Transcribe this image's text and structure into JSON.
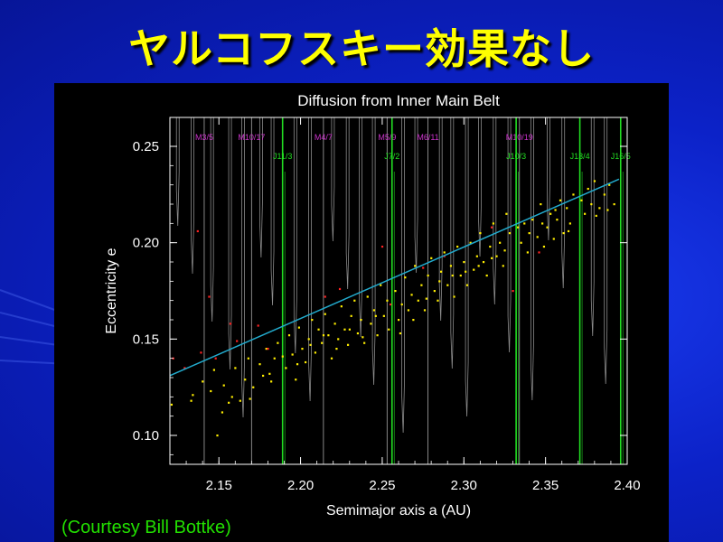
{
  "slide": {
    "title": "ヤルコフスキー効果なし",
    "credit": "(Courtesy Bill Bottke)"
  },
  "colors": {
    "background": "#0c22c8",
    "title": "#ffff00",
    "credit": "#22e000",
    "plot_bg": "#000000",
    "axes": "#ffffff",
    "mean_motion_mars": "#cc33cc",
    "mean_motion_jupiter": "#22dd22",
    "trend_line": "#22aacc",
    "points_main": "#ffee00",
    "points_removed": "#ff2222",
    "gray_resonance": "#bbbbbb"
  },
  "chart_data": {
    "type": "scatter",
    "title": "Diffusion from Inner Main Belt",
    "xlabel": "Semimajor axis a (AU)",
    "ylabel": "Eccentricity e",
    "xlim": [
      2.12,
      2.4
    ],
    "ylim": [
      0.085,
      0.265
    ],
    "x_ticks": [
      "2.15",
      "2.20",
      "2.25",
      "2.30",
      "2.35",
      "2.40"
    ],
    "y_ticks": [
      "0.10",
      "0.15",
      "0.20",
      "0.25"
    ],
    "grid": false,
    "mars_resonances": [
      {
        "label": "M3/5",
        "a": 2.141
      },
      {
        "label": "M10/17",
        "a": 2.17
      },
      {
        "label": "M4/7",
        "a": 2.214
      },
      {
        "label": "M5/9",
        "a": 2.253
      },
      {
        "label": "M6/11",
        "a": 2.278
      },
      {
        "label": "M10/19",
        "a": 2.334
      }
    ],
    "jupiter_resonances": [
      {
        "label": "J11/3",
        "a": 2.189
      },
      {
        "label": "J7/2",
        "a": 2.256
      },
      {
        "label": "J10/3",
        "a": 2.332
      },
      {
        "label": "J13/4",
        "a": 2.371
      },
      {
        "label": "J16/5",
        "a": 2.396
      }
    ],
    "gray_resonance_a": [
      2.124,
      2.133,
      2.145,
      2.156,
      2.164,
      2.175,
      2.182,
      2.196,
      2.205,
      2.219,
      2.228,
      2.236,
      2.244,
      2.262,
      2.27,
      2.285,
      2.292,
      2.301,
      2.309,
      2.318,
      2.327,
      2.341,
      2.351,
      2.36,
      2.378,
      2.386
    ],
    "trend_line": {
      "x": [
        2.12,
        2.395
      ],
      "y": [
        0.131,
        0.233
      ]
    },
    "series": [
      {
        "name": "",
        "color": "#ffee00",
        "points": [
          [
            2.121,
            0.116
          ],
          [
            2.133,
            0.118
          ],
          [
            2.134,
            0.121
          ],
          [
            2.14,
            0.128
          ],
          [
            2.145,
            0.123
          ],
          [
            2.147,
            0.134
          ],
          [
            2.149,
            0.1
          ],
          [
            2.152,
            0.112
          ],
          [
            2.153,
            0.126
          ],
          [
            2.158,
            0.12
          ],
          [
            2.16,
            0.135
          ],
          [
            2.163,
            0.118
          ],
          [
            2.166,
            0.129
          ],
          [
            2.168,
            0.14
          ],
          [
            2.171,
            0.125
          ],
          [
            2.175,
            0.137
          ],
          [
            2.177,
            0.131
          ],
          [
            2.179,
            0.145
          ],
          [
            2.182,
            0.128
          ],
          [
            2.184,
            0.14
          ],
          [
            2.186,
            0.148
          ],
          [
            2.191,
            0.135
          ],
          [
            2.193,
            0.152
          ],
          [
            2.195,
            0.142
          ],
          [
            2.197,
            0.129
          ],
          [
            2.199,
            0.156
          ],
          [
            2.201,
            0.145
          ],
          [
            2.203,
            0.138
          ],
          [
            2.205,
            0.15
          ],
          [
            2.207,
            0.16
          ],
          [
            2.209,
            0.143
          ],
          [
            2.211,
            0.155
          ],
          [
            2.213,
            0.148
          ],
          [
            2.215,
            0.163
          ],
          [
            2.217,
            0.152
          ],
          [
            2.219,
            0.14
          ],
          [
            2.221,
            0.158
          ],
          [
            2.223,
            0.15
          ],
          [
            2.225,
            0.167
          ],
          [
            2.227,
            0.155
          ],
          [
            2.229,
            0.147
          ],
          [
            2.231,
            0.162
          ],
          [
            2.233,
            0.17
          ],
          [
            2.235,
            0.153
          ],
          [
            2.237,
            0.16
          ],
          [
            2.239,
            0.148
          ],
          [
            2.241,
            0.172
          ],
          [
            2.243,
            0.158
          ],
          [
            2.245,
            0.165
          ],
          [
            2.247,
            0.152
          ],
          [
            2.249,
            0.178
          ],
          [
            2.251,
            0.162
          ],
          [
            2.253,
            0.17
          ],
          [
            2.258,
            0.175
          ],
          [
            2.26,
            0.16
          ],
          [
            2.262,
            0.168
          ],
          [
            2.264,
            0.182
          ],
          [
            2.266,
            0.165
          ],
          [
            2.268,
            0.173
          ],
          [
            2.27,
            0.188
          ],
          [
            2.272,
            0.17
          ],
          [
            2.274,
            0.178
          ],
          [
            2.276,
            0.165
          ],
          [
            2.278,
            0.183
          ],
          [
            2.28,
            0.192
          ],
          [
            2.282,
            0.175
          ],
          [
            2.284,
            0.17
          ],
          [
            2.286,
            0.185
          ],
          [
            2.288,
            0.195
          ],
          [
            2.29,
            0.178
          ],
          [
            2.292,
            0.188
          ],
          [
            2.294,
            0.172
          ],
          [
            2.296,
            0.198
          ],
          [
            2.298,
            0.183
          ],
          [
            2.3,
            0.19
          ],
          [
            2.302,
            0.178
          ],
          [
            2.304,
            0.2
          ],
          [
            2.306,
            0.186
          ],
          [
            2.308,
            0.193
          ],
          [
            2.31,
            0.205
          ],
          [
            2.312,
            0.19
          ],
          [
            2.314,
            0.183
          ],
          [
            2.316,
            0.198
          ],
          [
            2.318,
            0.21
          ],
          [
            2.32,
            0.193
          ],
          [
            2.322,
            0.2
          ],
          [
            2.324,
            0.188
          ],
          [
            2.326,
            0.215
          ],
          [
            2.328,
            0.205
          ],
          [
            2.335,
            0.2
          ],
          [
            2.337,
            0.21
          ],
          [
            2.339,
            0.195
          ],
          [
            2.342,
            0.212
          ],
          [
            2.345,
            0.203
          ],
          [
            2.347,
            0.22
          ],
          [
            2.349,
            0.198
          ],
          [
            2.351,
            0.208
          ],
          [
            2.353,
            0.215
          ],
          [
            2.355,
            0.202
          ],
          [
            2.357,
            0.212
          ],
          [
            2.359,
            0.222
          ],
          [
            2.361,
            0.205
          ],
          [
            2.363,
            0.218
          ],
          [
            2.365,
            0.21
          ],
          [
            2.367,
            0.225
          ],
          [
            2.374,
            0.215
          ],
          [
            2.376,
            0.228
          ],
          [
            2.378,
            0.22
          ],
          [
            2.38,
            0.232
          ],
          [
            2.383,
            0.218
          ],
          [
            2.386,
            0.225
          ],
          [
            2.389,
            0.23
          ],
          [
            2.392,
            0.22
          ],
          [
            2.156,
            0.117
          ],
          [
            2.169,
            0.119
          ],
          [
            2.181,
            0.132
          ],
          [
            2.189,
            0.141
          ],
          [
            2.198,
            0.137
          ],
          [
            2.206,
            0.147
          ],
          [
            2.214,
            0.152
          ],
          [
            2.222,
            0.145
          ],
          [
            2.23,
            0.155
          ],
          [
            2.238,
            0.151
          ],
          [
            2.246,
            0.162
          ],
          [
            2.254,
            0.155
          ],
          [
            2.261,
            0.153
          ],
          [
            2.269,
            0.16
          ],
          [
            2.277,
            0.171
          ],
          [
            2.285,
            0.18
          ],
          [
            2.293,
            0.183
          ],
          [
            2.301,
            0.185
          ],
          [
            2.309,
            0.188
          ],
          [
            2.317,
            0.192
          ],
          [
            2.325,
            0.196
          ],
          [
            2.333,
            0.208
          ],
          [
            2.34,
            0.205
          ],
          [
            2.348,
            0.21
          ],
          [
            2.356,
            0.217
          ],
          [
            2.364,
            0.206
          ],
          [
            2.372,
            0.222
          ],
          [
            2.381,
            0.214
          ],
          [
            2.388,
            0.217
          ]
        ]
      },
      {
        "name": "",
        "color": "#ff2222",
        "points": [
          [
            2.122,
            0.14
          ],
          [
            2.129,
            0.135
          ],
          [
            2.137,
            0.206
          ],
          [
            2.139,
            0.143
          ],
          [
            2.144,
            0.172
          ],
          [
            2.148,
            0.14
          ],
          [
            2.157,
            0.158
          ],
          [
            2.161,
            0.149
          ],
          [
            2.174,
            0.157
          ],
          [
            2.18,
            0.145
          ],
          [
            2.215,
            0.172
          ],
          [
            2.224,
            0.176
          ],
          [
            2.25,
            0.198
          ],
          [
            2.255,
            0.168
          ],
          [
            2.275,
            0.187
          ],
          [
            2.288,
            0.193
          ],
          [
            2.317,
            0.208
          ],
          [
            2.33,
            0.175
          ],
          [
            2.346,
            0.195
          ]
        ]
      }
    ]
  }
}
